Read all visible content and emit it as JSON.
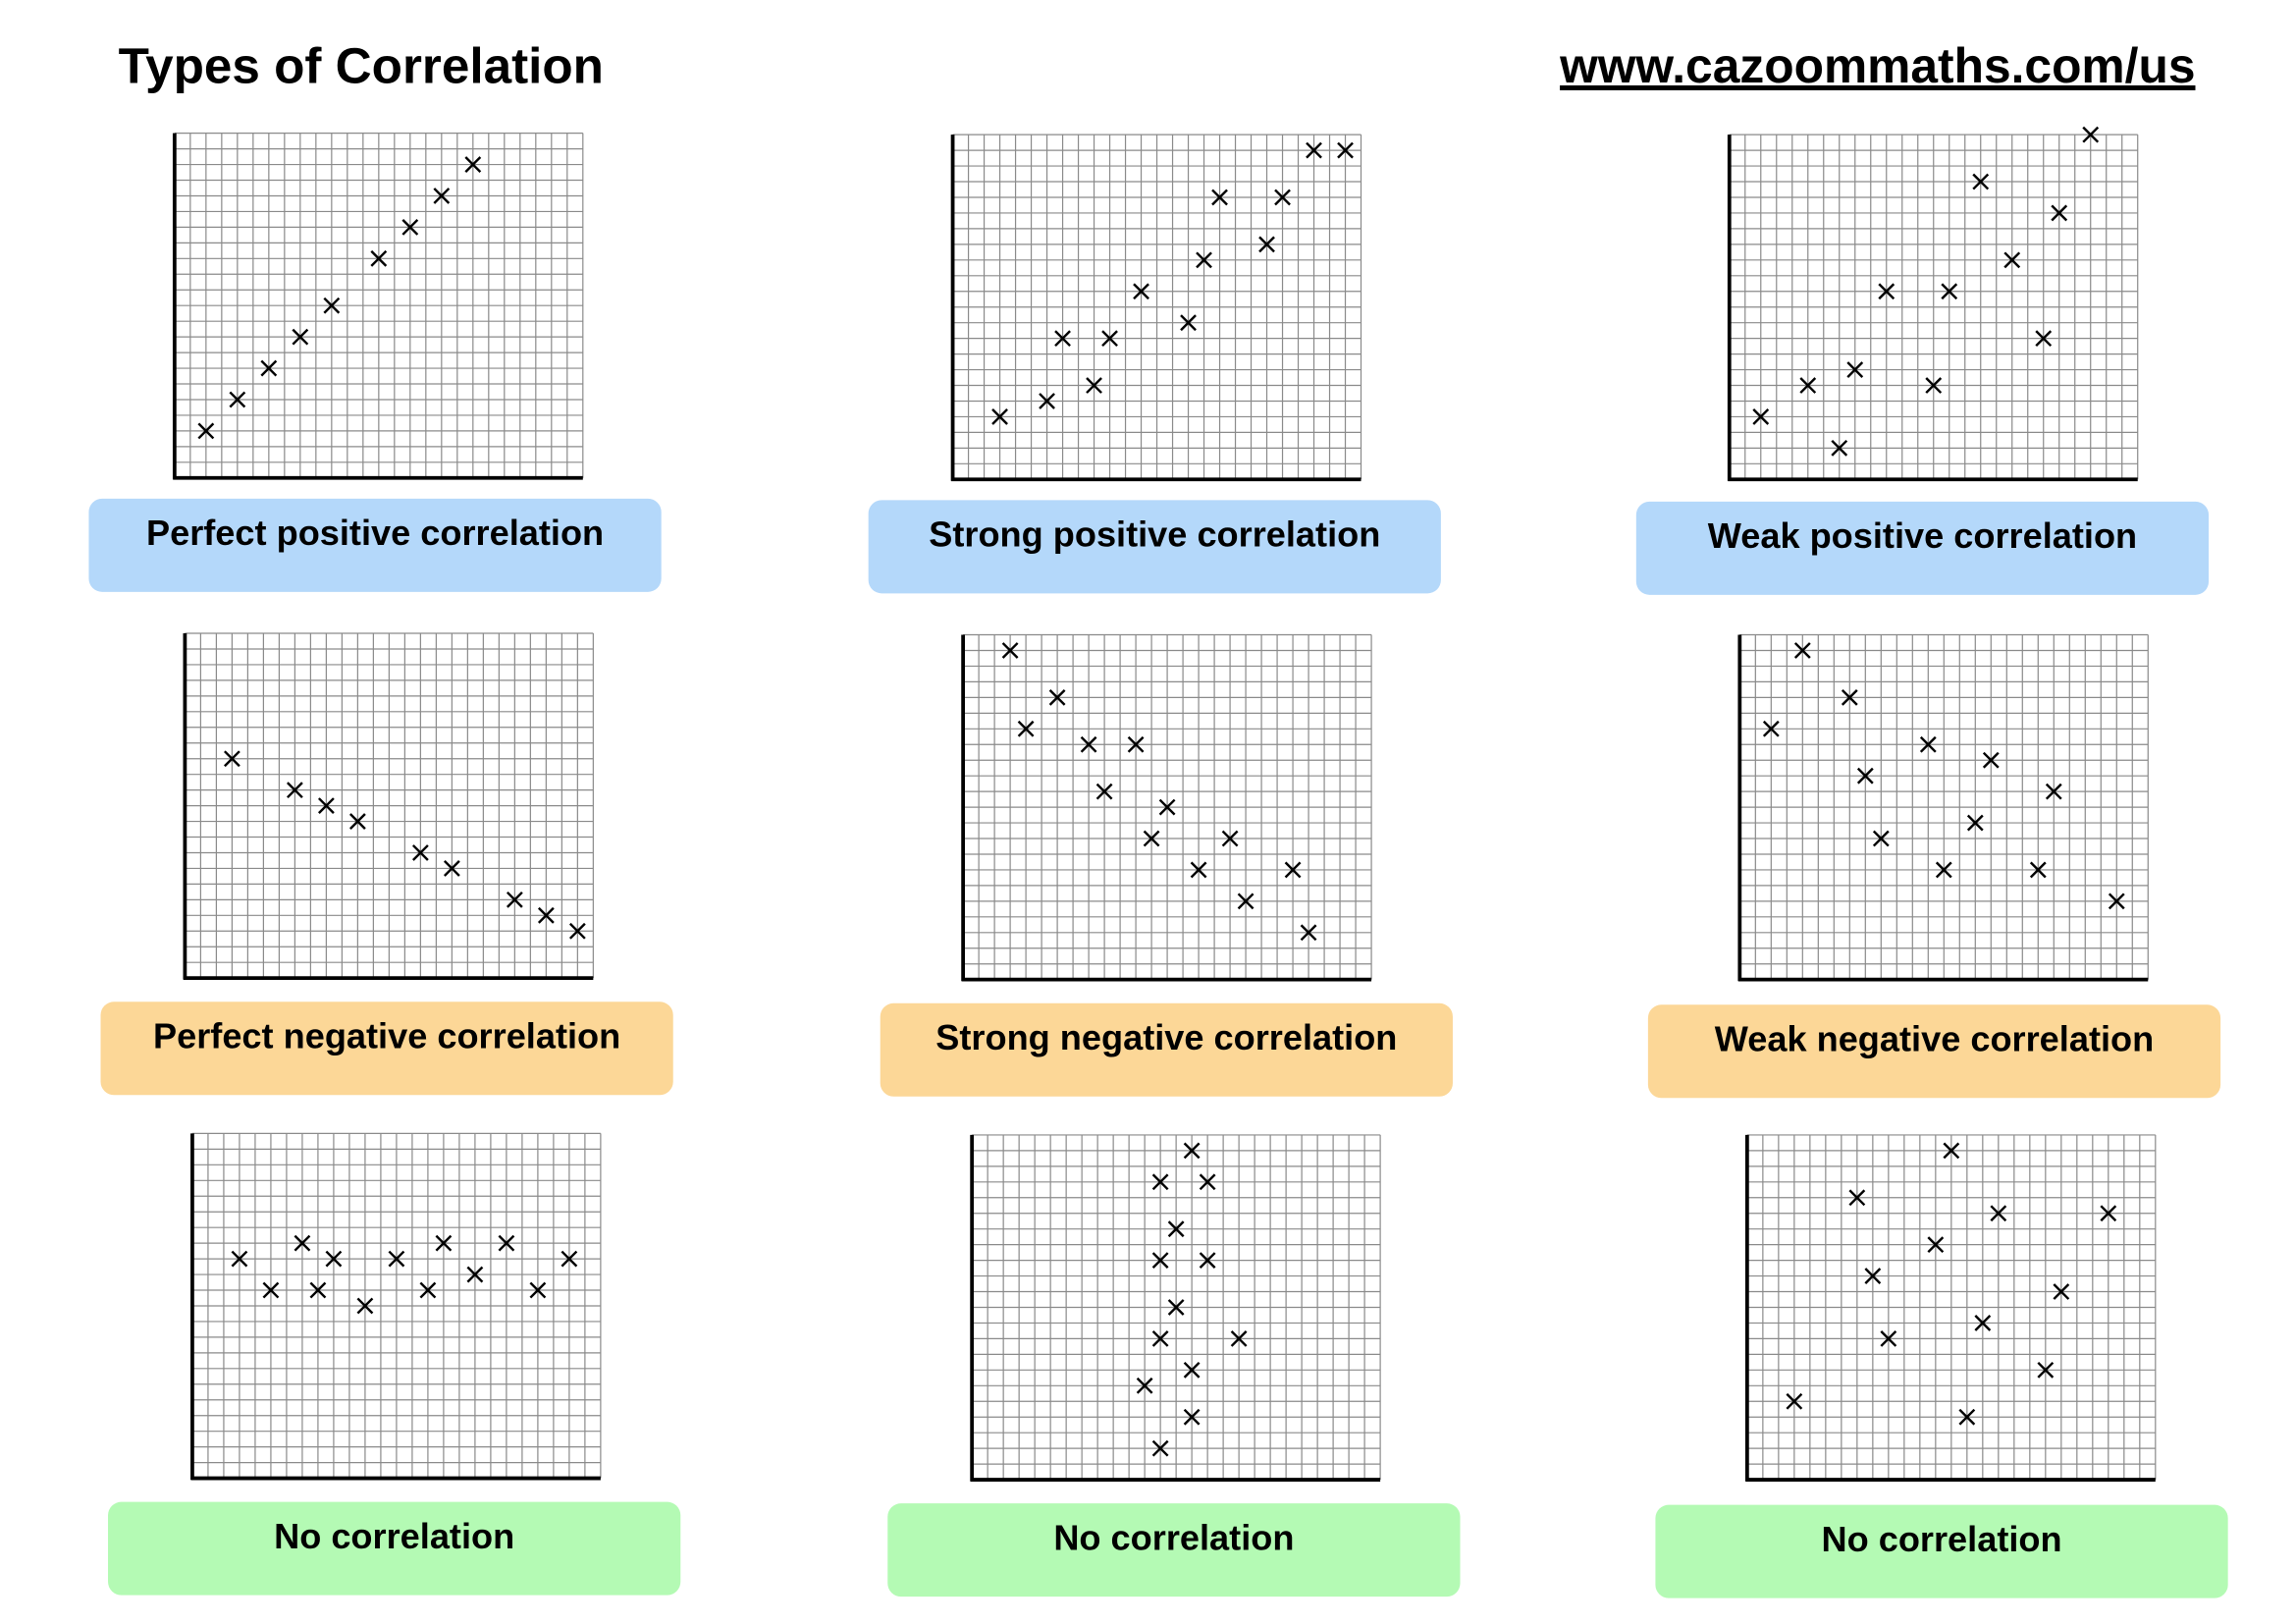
{
  "header": {
    "title": "Types of Correlation",
    "url": "www.cazoommaths.com/us"
  },
  "chart_data": [
    {
      "type": "scatter",
      "title": "Perfect positive correlation",
      "label_background": "#b4d8fa",
      "color": "#000000",
      "grid": true,
      "xlim": [
        0,
        26
      ],
      "ylim": [
        0,
        22
      ],
      "x": [
        2,
        4,
        6,
        8,
        10,
        13,
        15,
        17,
        19
      ],
      "values": [
        3,
        5,
        7,
        9,
        11,
        14,
        16,
        18,
        20
      ]
    },
    {
      "type": "scatter",
      "title": "Strong positive correlation",
      "label_background": "#b4d8fa",
      "color": "#000000",
      "grid": true,
      "xlim": [
        0,
        26
      ],
      "ylim": [
        0,
        22
      ],
      "x": [
        3,
        6,
        7,
        9,
        10,
        12,
        15,
        16,
        17,
        20,
        21,
        23,
        25
      ],
      "values": [
        4,
        5,
        9,
        6,
        9,
        12,
        10,
        14,
        18,
        15,
        18,
        21,
        21
      ]
    },
    {
      "type": "scatter",
      "title": "Weak positive correlation",
      "label_background": "#b4d8fa",
      "color": "#000000",
      "grid": true,
      "xlim": [
        0,
        26
      ],
      "ylim": [
        0,
        22
      ],
      "x": [
        2,
        5,
        7,
        8,
        10,
        13,
        14,
        16,
        18,
        20,
        21,
        23
      ],
      "values": [
        4,
        6,
        2,
        7,
        12,
        6,
        12,
        19,
        14,
        9,
        17,
        22
      ]
    },
    {
      "type": "scatter",
      "title": "Perfect negative correlation",
      "label_background": "#fcd797",
      "color": "#000000",
      "grid": true,
      "xlim": [
        0,
        26
      ],
      "ylim": [
        0,
        22
      ],
      "x": [
        3,
        7,
        9,
        11,
        15,
        17,
        21,
        23,
        25
      ],
      "values": [
        14,
        12,
        11,
        10,
        8,
        7,
        5,
        4,
        3
      ]
    },
    {
      "type": "scatter",
      "title": "Strong negative correlation",
      "label_background": "#fcd797",
      "color": "#000000",
      "grid": true,
      "xlim": [
        0,
        26
      ],
      "ylim": [
        0,
        22
      ],
      "x": [
        3,
        4,
        6,
        8,
        9,
        11,
        12,
        13,
        15,
        17,
        18,
        21,
        22
      ],
      "values": [
        21,
        16,
        18,
        15,
        12,
        15,
        9,
        11,
        7,
        9,
        5,
        7,
        3
      ]
    },
    {
      "type": "scatter",
      "title": "Weak negative correlation",
      "label_background": "#fcd797",
      "color": "#000000",
      "grid": true,
      "xlim": [
        0,
        26
      ],
      "ylim": [
        0,
        22
      ],
      "x": [
        2,
        4,
        7,
        8,
        9,
        12,
        13,
        15,
        16,
        20,
        19,
        24
      ],
      "values": [
        16,
        21,
        18,
        13,
        9,
        15,
        7,
        10,
        14,
        12,
        7,
        5
      ]
    },
    {
      "type": "scatter",
      "title": "No correlation",
      "label_background": "#b4fab4",
      "color": "#000000",
      "grid": true,
      "xlim": [
        0,
        26
      ],
      "ylim": [
        0,
        22
      ],
      "x": [
        3,
        5,
        7,
        8,
        9,
        11,
        13,
        15,
        16,
        18,
        20,
        22,
        24
      ],
      "values": [
        14,
        12,
        15,
        12,
        14,
        11,
        14,
        12,
        15,
        13,
        15,
        12,
        14
      ]
    },
    {
      "type": "scatter",
      "title": "No correlation",
      "label_background": "#b4fab4",
      "color": "#000000",
      "grid": true,
      "xlim": [
        0,
        26
      ],
      "ylim": [
        0,
        22
      ],
      "x": [
        14,
        12,
        15,
        13,
        12,
        15,
        13,
        12,
        17,
        11,
        14,
        14,
        12
      ],
      "values": [
        21,
        19,
        19,
        16,
        14,
        14,
        11,
        9,
        9,
        6,
        7,
        4,
        2
      ]
    },
    {
      "type": "scatter",
      "title": "No correlation",
      "label_background": "#b4fab4",
      "color": "#000000",
      "grid": true,
      "xlim": [
        0,
        26
      ],
      "ylim": [
        0,
        22
      ],
      "x": [
        3,
        7,
        8,
        9,
        12,
        13,
        15,
        14,
        16,
        19,
        20,
        23
      ],
      "values": [
        5,
        18,
        13,
        9,
        15,
        21,
        10,
        4,
        17,
        7,
        12,
        17
      ]
    }
  ]
}
